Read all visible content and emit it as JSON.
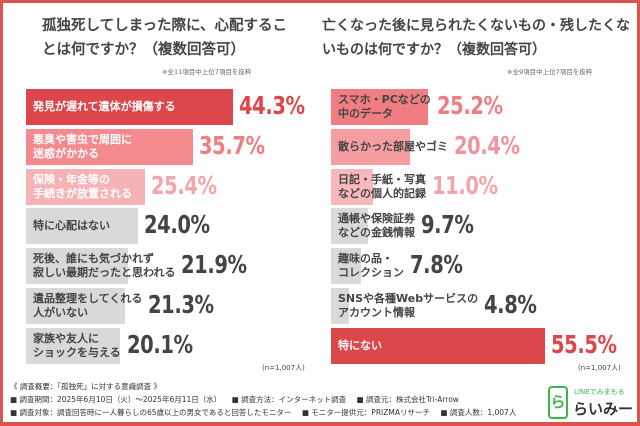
{
  "chart_data": [
    {
      "type": "bar",
      "orientation": "horizontal",
      "title": "孤独死してしまった際に、心配することは何ですか？（複数回答可）",
      "note": "※全11項目中上位7項目を抜粋",
      "sample": "(n=1,007人)",
      "categories": [
        "発見が遅れて遺体が損傷する",
        "悪臭や害虫で周囲に\n迷惑がかかる",
        "保険・年金等の\n手続きが放置される",
        "特に心配はない",
        "死後、誰にも気づかれず\n寂しい最期だったと思われる",
        "遺品整理をしてくれる\n人がいない",
        "家族や友人に\nショックを与える"
      ],
      "values": [
        44.3,
        35.7,
        25.4,
        24.0,
        21.9,
        21.3,
        20.1
      ],
      "labels": [
        "44.3%",
        "35.7%",
        "25.4%",
        "24.0%",
        "21.9%",
        "21.3%",
        "20.1%"
      ],
      "colors": [
        "#dc474b",
        "#f28a8e",
        "#f6b3b5",
        "#d9d9d9",
        "#d9d9d9",
        "#d9d9d9",
        "#d9d9d9"
      ],
      "text_colors": [
        "#dc474b",
        "#ef7d82",
        "#f3a5a8",
        "#444444",
        "#444444",
        "#444444",
        "#444444"
      ]
    },
    {
      "type": "bar",
      "orientation": "horizontal",
      "title": "亡くなった後に見られたくないもの・残したくないものは何ですか？（複数回答可）",
      "note": "※全9項目中上位7項目を抜粋",
      "sample": "(n=1,007人)",
      "categories": [
        "スマホ・PCなどの\n中のデータ",
        "散らかった部屋やゴミ",
        "日記・手紙・写真\nなどの個人的記録",
        "通帳や保険証券\nなどの金銭情報",
        "趣味の品・\nコレクション",
        "SNSや各種Webサービスの\nアカウント情報",
        "特にない"
      ],
      "values": [
        25.2,
        20.4,
        11.0,
        9.7,
        7.8,
        4.8,
        55.5
      ],
      "labels": [
        "25.2%",
        "20.4%",
        "11.0%",
        "9.7%",
        "7.8%",
        "4.8%",
        "55.5%"
      ],
      "colors": [
        "#f07d82",
        "#f49ea1",
        "#f7b9bb",
        "#d9d9d9",
        "#d9d9d9",
        "#d9d9d9",
        "#dc474b"
      ],
      "text_colors": [
        "#ef7d82",
        "#f093a0",
        "#f3a5a8",
        "#444444",
        "#444444",
        "#444444",
        "#dc474b"
      ]
    }
  ],
  "footer": {
    "heading": "《 調査概要：「孤独死」に対する意識調査 》",
    "line1": [
      "■ 調査期間：2025年6月10日（火）～2025年6月11日（水）",
      "■ 調査方法：インターネット調査",
      "■ 調査元：株式会社Tri-Arrow"
    ],
    "line2": [
      "■ 調査対象：調査回答時に一人暮らしの65歳以上の男女であると回答したモニター",
      "■ モニター提供元：PRIZMAリサーチ",
      "■ 調査人数：1,007人"
    ]
  },
  "logo": {
    "tagline": "LINEでみまもる",
    "name": "らいみー",
    "mark": "ら"
  },
  "accent": "#dc474b"
}
